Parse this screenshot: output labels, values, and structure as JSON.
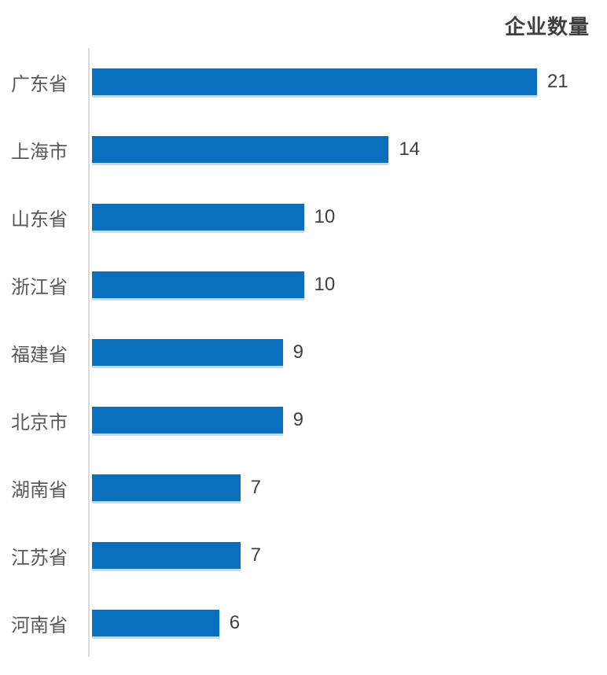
{
  "title": "企业数量",
  "colors": {
    "bar": "#0a70be",
    "bar_shadow": "#bdd7ee",
    "axis": "#d9d9d9",
    "category_label": "#595959",
    "value_label": "#404040",
    "title": "#3f3f3f"
  },
  "chart_data": {
    "type": "bar",
    "orientation": "horizontal",
    "title": "企业数量",
    "xlabel": "",
    "ylabel": "",
    "categories": [
      "广东省",
      "上海市",
      "山东省",
      "浙江省",
      "福建省",
      "北京市",
      "湖南省",
      "江苏省",
      "河南省"
    ],
    "values": [
      21,
      14,
      10,
      10,
      9,
      9,
      7,
      7,
      6
    ],
    "xlim": [
      0,
      21
    ],
    "grid": false,
    "legend": "none",
    "data_labels": true
  }
}
